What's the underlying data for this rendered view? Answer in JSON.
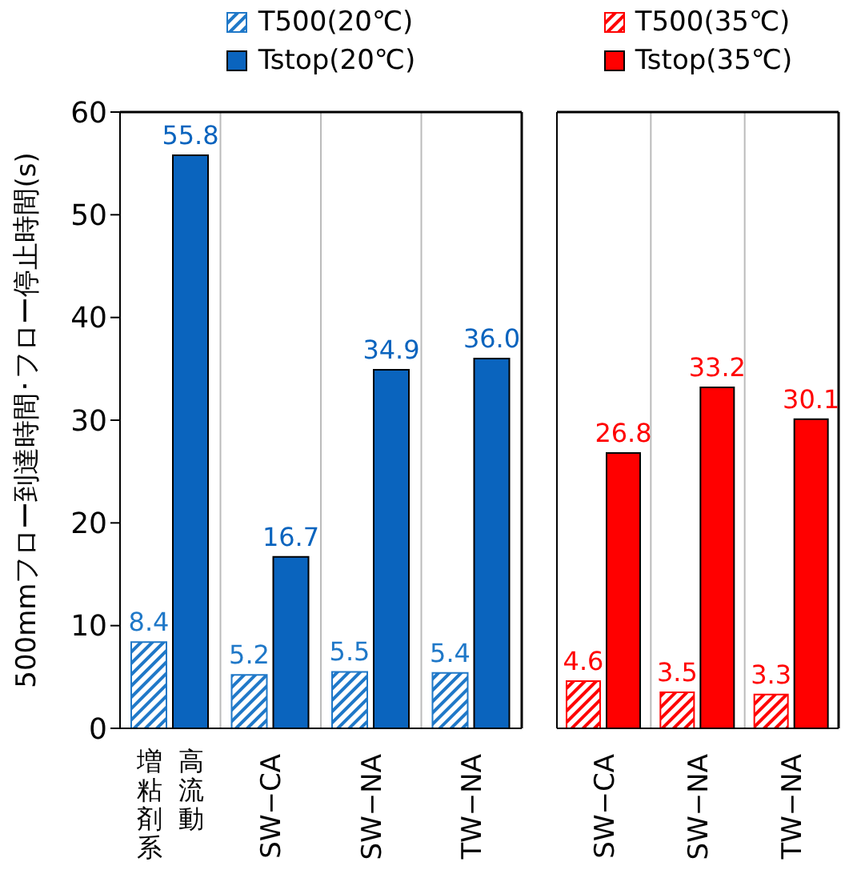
{
  "chart_data": [
    {
      "type": "bar",
      "ylabel": "500mmフロー到達時間･フロー停止時間(s)",
      "categories": [
        "増粘剤系高流動",
        "SW−CA",
        "SW−NA",
        "TW−NA"
      ],
      "ylim": [
        0,
        60
      ],
      "yticks": [
        0,
        10,
        20,
        30,
        40,
        50,
        60
      ],
      "grid": "x",
      "legend": "top",
      "data_labels": true,
      "series": [
        {
          "name": "T500(20℃)",
          "color": "#1f78c8",
          "values": [
            8.4,
            5.2,
            5.5,
            5.4
          ],
          "value_labels": [
            "8.4",
            "5.2",
            "5.5",
            "5.4"
          ]
        },
        {
          "name": "Tstop(20℃)",
          "color": "#0a64be",
          "values": [
            55.8,
            16.7,
            34.9,
            36.0
          ],
          "value_labels": [
            "55.8",
            "16.7",
            "34.9",
            "36.0"
          ]
        }
      ]
    },
    {
      "type": "bar",
      "categories": [
        "SW−CA",
        "SW−NA",
        "TW−NA"
      ],
      "ylim": [
        0,
        60
      ],
      "yticks": [
        0,
        10,
        20,
        30,
        40,
        50,
        60
      ],
      "tick_labels": "x",
      "grid": "x",
      "legend": "top",
      "data_labels": true,
      "series": [
        {
          "name": "T500(35℃)",
          "color": "#ff0000",
          "values": [
            4.6,
            3.5,
            3.3
          ],
          "value_labels": [
            "4.6",
            "3.5",
            "3.3"
          ]
        },
        {
          "name": "Tstop(35℃)",
          "color": "#ff0000",
          "values": [
            26.8,
            33.2,
            30.1
          ],
          "value_labels": [
            "26.8",
            "33.2",
            "30.1"
          ]
        }
      ]
    }
  ]
}
